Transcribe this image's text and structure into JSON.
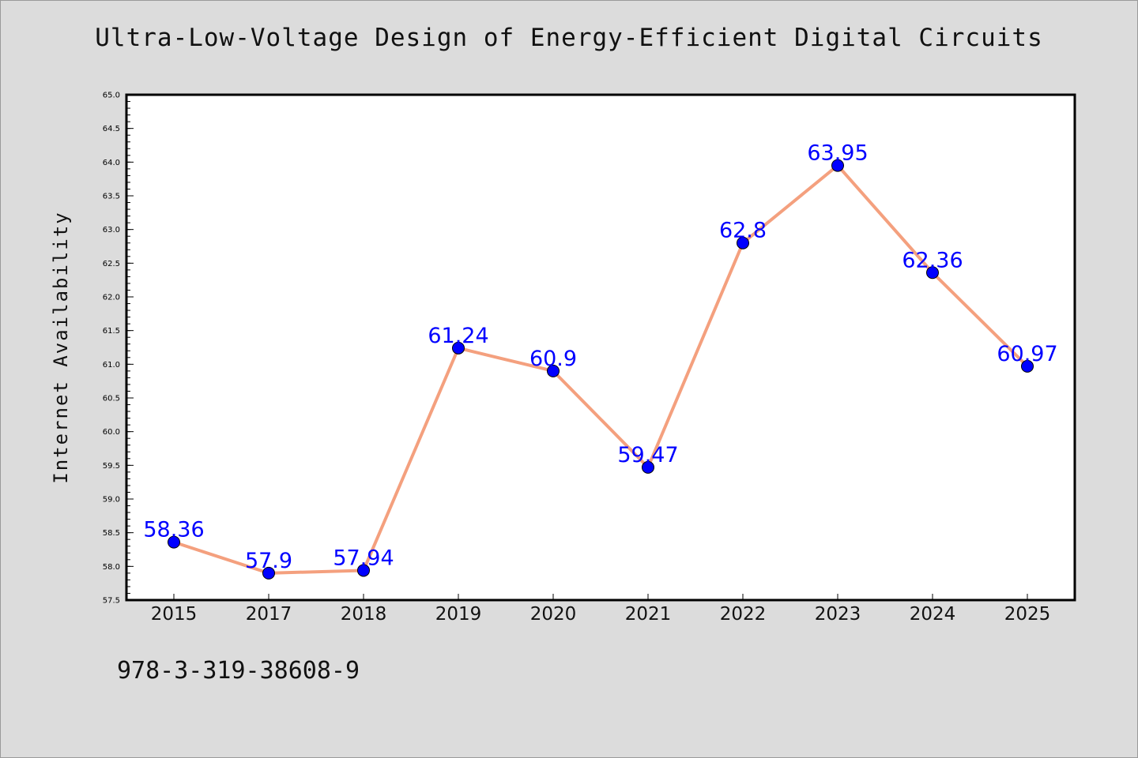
{
  "title": "Ultra-Low-Voltage Design of Energy-Efficient Digital Circuits",
  "footer_text": "978-3-319-38608-9",
  "colors": {
    "background": "#dcdcdc",
    "plot_background": "#ffffff",
    "line": "#f4a07e",
    "marker": "#0000ff",
    "data_label": "#0000ff"
  },
  "chart_data": {
    "type": "line",
    "title": "Ultra-Low-Voltage Design of Energy-Efficient Digital Circuits",
    "xlabel": "",
    "ylabel": "Internet Availability",
    "categories": [
      "2015",
      "2017",
      "2018",
      "2019",
      "2020",
      "2021",
      "2022",
      "2023",
      "2024",
      "2025"
    ],
    "values": [
      58.36,
      57.9,
      57.94,
      61.24,
      60.9,
      59.47,
      62.8,
      63.95,
      62.36,
      60.97
    ],
    "data_labels": [
      "58.36",
      "57.9",
      "57.94",
      "61.24",
      "60.9",
      "59.47",
      "62.8",
      "63.95",
      "62.36",
      "60.97"
    ],
    "ylim": [
      57.5,
      65.0
    ],
    "yticks": [
      "57.5",
      "58.0",
      "58.5",
      "59.0",
      "59.5",
      "60.0",
      "60.5",
      "61.0",
      "61.5",
      "62.0",
      "62.5",
      "63.0",
      "63.5",
      "64.0",
      "64.5",
      "65.0"
    ],
    "grid": false,
    "legend": "none"
  }
}
